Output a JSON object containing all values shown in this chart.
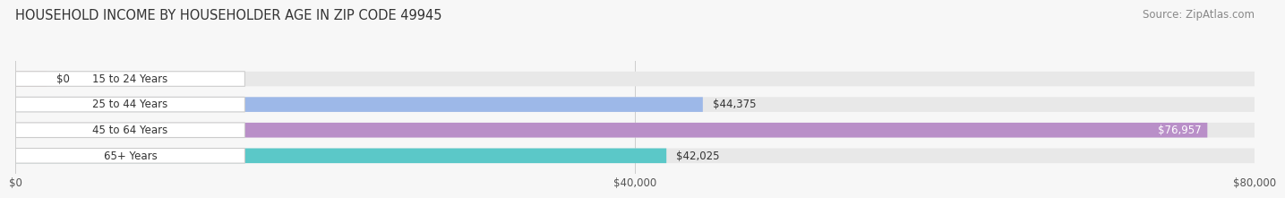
{
  "title": "HOUSEHOLD INCOME BY HOUSEHOLDER AGE IN ZIP CODE 49945",
  "source": "Source: ZipAtlas.com",
  "categories": [
    "15 to 24 Years",
    "25 to 44 Years",
    "45 to 64 Years",
    "65+ Years"
  ],
  "values": [
    0,
    44375,
    76957,
    42025
  ],
  "bar_colors": [
    "#f4a0a0",
    "#9db8e8",
    "#b98fc8",
    "#5bc8c8"
  ],
  "bar_bg_color": "#e8e8e8",
  "x_max": 80000,
  "x_ticks": [
    0,
    40000,
    80000
  ],
  "x_tick_labels": [
    "$0",
    "$40,000",
    "$80,000"
  ],
  "value_labels": [
    "$0",
    "$44,375",
    "$76,957",
    "$42,025"
  ],
  "title_fontsize": 10.5,
  "source_fontsize": 8.5,
  "tick_fontsize": 8.5,
  "bar_label_fontsize": 8.5,
  "cat_label_fontsize": 8.5,
  "background_color": "#f7f7f7"
}
